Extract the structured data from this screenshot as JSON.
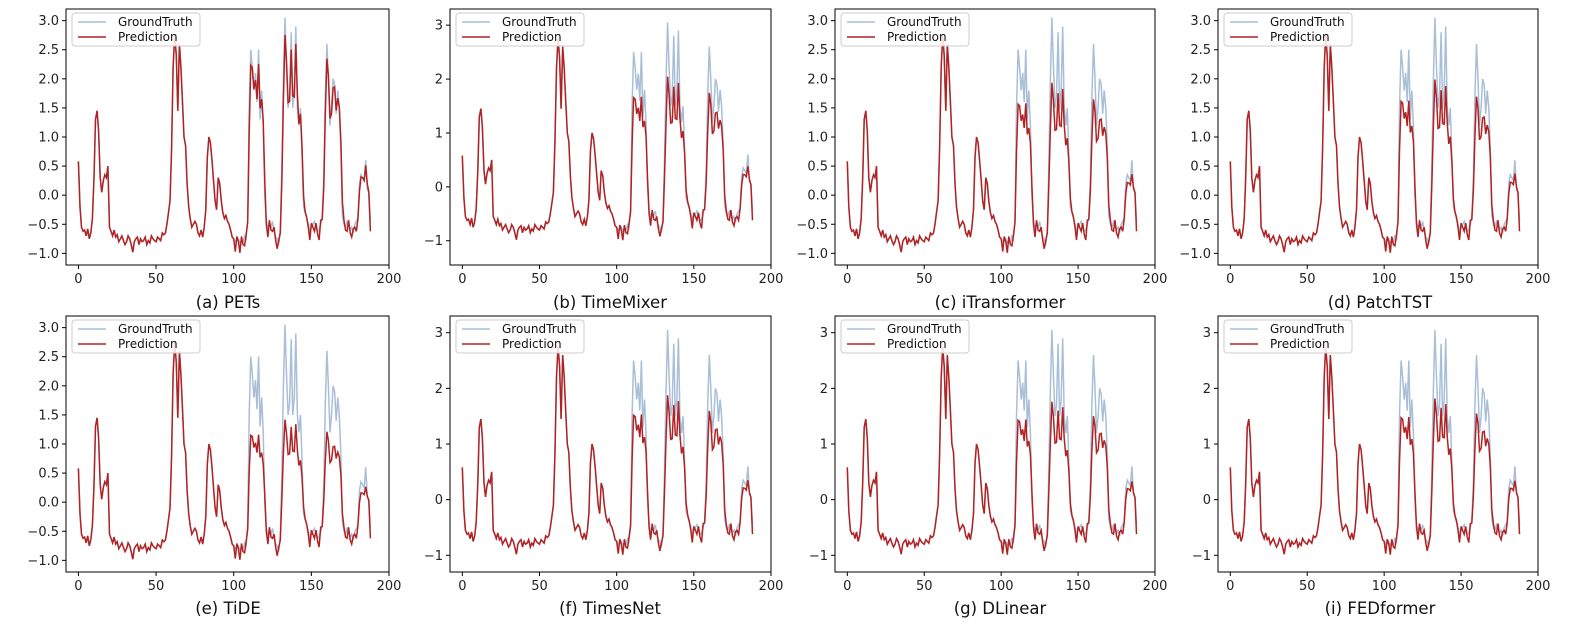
{
  "colors": {
    "ground_truth": "#a9bfd8",
    "prediction": "#b22222",
    "axis": "#000000"
  },
  "chart_data": [
    {
      "type": "line",
      "panel_id": "a",
      "caption": "(a) PETs",
      "model": "PETs",
      "series": [
        {
          "name": "GroundTruth"
        },
        {
          "name": "Prediction"
        }
      ],
      "xlim": [
        -8,
        200
      ],
      "ylim": [
        -1.2,
        3.2
      ],
      "x_ticks": [
        0,
        50,
        100,
        150,
        200
      ],
      "y_ticks": [
        -1.0,
        -0.5,
        0.0,
        0.5,
        1.0,
        1.5,
        2.0,
        2.5,
        3.0
      ],
      "y_tick_labels": [
        "−1.0",
        "−0.5",
        "0.0",
        "0.5",
        "1.0",
        "1.5",
        "2.0",
        "2.5",
        "3.0"
      ],
      "pred_scale": 0.97,
      "legend": "top-left"
    },
    {
      "type": "line",
      "panel_id": "b",
      "caption": "(b) TimeMixer",
      "model": "TimeMixer",
      "series": [
        {
          "name": "GroundTruth"
        },
        {
          "name": "Prediction"
        }
      ],
      "xlim": [
        -8,
        200
      ],
      "ylim": [
        -1.45,
        3.3
      ],
      "x_ticks": [
        0,
        50,
        100,
        150,
        200
      ],
      "y_ticks": [
        -1,
        0,
        1,
        2,
        3
      ],
      "y_tick_labels": [
        "−1",
        "0",
        "1",
        "2",
        "3"
      ],
      "pred_scale": 0.72,
      "legend": "top-left"
    },
    {
      "type": "line",
      "panel_id": "c",
      "caption": "(c) iTransformer",
      "model": "iTransformer",
      "series": [
        {
          "name": "GroundTruth"
        },
        {
          "name": "Prediction"
        }
      ],
      "xlim": [
        -8,
        200
      ],
      "ylim": [
        -1.2,
        3.2
      ],
      "x_ticks": [
        0,
        50,
        100,
        150,
        200
      ],
      "y_ticks": [
        -1.0,
        -0.5,
        0.0,
        0.5,
        1.0,
        1.5,
        2.0,
        2.5,
        3.0
      ],
      "y_tick_labels": [
        "−1.0",
        "−0.5",
        "0.0",
        "0.5",
        "1.0",
        "1.5",
        "2.0",
        "2.5",
        "3.0"
      ],
      "pred_scale": 0.68,
      "legend": "top-left"
    },
    {
      "type": "line",
      "panel_id": "d",
      "caption": "(d) PatchTST",
      "model": "PatchTST",
      "series": [
        {
          "name": "GroundTruth"
        },
        {
          "name": "Prediction"
        }
      ],
      "xlim": [
        -8,
        200
      ],
      "ylim": [
        -1.2,
        3.2
      ],
      "x_ticks": [
        0,
        50,
        100,
        150,
        200
      ],
      "y_ticks": [
        -1.0,
        -0.5,
        0.0,
        0.5,
        1.0,
        1.5,
        2.0,
        2.5,
        3.0
      ],
      "y_tick_labels": [
        "−1.0",
        "−0.5",
        "0.0",
        "0.5",
        "1.0",
        "1.5",
        "2.0",
        "2.5",
        "3.0"
      ],
      "pred_scale": 0.7,
      "legend": "top-left"
    },
    {
      "type": "line",
      "panel_id": "e",
      "caption": "(e) TiDE",
      "model": "TiDE",
      "series": [
        {
          "name": "GroundTruth"
        },
        {
          "name": "Prediction"
        }
      ],
      "xlim": [
        -8,
        200
      ],
      "ylim": [
        -1.2,
        3.2
      ],
      "x_ticks": [
        0,
        50,
        100,
        150,
        200
      ],
      "y_ticks": [
        -1.0,
        -0.5,
        0.0,
        0.5,
        1.0,
        1.5,
        2.0,
        2.5,
        3.0
      ],
      "y_tick_labels": [
        "−1.0",
        "−0.5",
        "0.0",
        "0.5",
        "1.0",
        "1.5",
        "2.0",
        "2.5",
        "3.0"
      ],
      "pred_scale": 0.5,
      "legend": "top-left"
    },
    {
      "type": "line",
      "panel_id": "f",
      "caption": "(f) TimesNet",
      "model": "TimesNet",
      "series": [
        {
          "name": "GroundTruth"
        },
        {
          "name": "Prediction"
        }
      ],
      "xlim": [
        -8,
        200
      ],
      "ylim": [
        -1.3,
        3.3
      ],
      "x_ticks": [
        0,
        50,
        100,
        150,
        200
      ],
      "y_ticks": [
        -1,
        0,
        1,
        2,
        3
      ],
      "y_tick_labels": [
        "−1",
        "0",
        "1",
        "2",
        "3"
      ],
      "pred_scale": 0.66,
      "legend": "top-left"
    },
    {
      "type": "line",
      "panel_id": "g",
      "caption": "(g) DLinear",
      "model": "DLinear",
      "series": [
        {
          "name": "GroundTruth"
        },
        {
          "name": "Prediction"
        }
      ],
      "xlim": [
        -8,
        200
      ],
      "ylim": [
        -1.3,
        3.3
      ],
      "x_ticks": [
        0,
        50,
        100,
        150,
        200
      ],
      "y_ticks": [
        -1,
        0,
        1,
        2,
        3
      ],
      "y_tick_labels": [
        "−1",
        "0",
        "1",
        "2",
        "3"
      ],
      "pred_scale": 0.62,
      "legend": "top-left"
    },
    {
      "type": "line",
      "panel_id": "i",
      "caption": "(i) FEDformer",
      "model": "FEDformer",
      "series": [
        {
          "name": "GroundTruth"
        },
        {
          "name": "Prediction"
        }
      ],
      "xlim": [
        -8,
        200
      ],
      "ylim": [
        -1.3,
        3.3
      ],
      "x_ticks": [
        0,
        50,
        100,
        150,
        200
      ],
      "y_ticks": [
        -1,
        0,
        1,
        2,
        3
      ],
      "y_tick_labels": [
        "−1",
        "0",
        "1",
        "2",
        "3"
      ],
      "pred_scale": 0.64,
      "legend": "top-left"
    }
  ],
  "ground_truth_values": [
    0.58,
    -0.2,
    -0.55,
    -0.62,
    -0.6,
    -0.7,
    -0.58,
    -0.75,
    -0.65,
    -0.4,
    0.3,
    1.3,
    1.45,
    1.1,
    0.3,
    0.05,
    0.25,
    0.35,
    0.3,
    0.5,
    -0.55,
    -0.62,
    -0.7,
    -0.6,
    -0.72,
    -0.68,
    -0.8,
    -0.75,
    -0.7,
    -0.78,
    -0.85,
    -0.8,
    -0.7,
    -0.75,
    -0.85,
    -0.98,
    -0.8,
    -0.75,
    -0.72,
    -0.85,
    -0.75,
    -0.8,
    -0.78,
    -0.72,
    -0.85,
    -0.78,
    -0.82,
    -0.7,
    -0.75,
    -0.78,
    -0.8,
    -0.72,
    -0.75,
    -0.78,
    -0.65,
    -0.68,
    -0.65,
    -0.5,
    -0.3,
    -0.1,
    0.8,
    2.2,
    2.75,
    2.4,
    1.45,
    2.6,
    2.2,
    1.6,
    1.0,
    0.85,
    0.2,
    -0.2,
    -0.4,
    -0.55,
    -0.5,
    -0.45,
    -0.5,
    -0.65,
    -0.7,
    -0.6,
    -0.72,
    -0.55,
    -0.25,
    0.65,
    1.0,
    0.9,
    0.6,
    0.25,
    -0.1,
    -0.25,
    0.3,
    0.2,
    -0.1,
    -0.3,
    -0.4,
    -0.35,
    -0.45,
    -0.5,
    -0.6,
    -0.72,
    -0.75,
    -0.8,
    -0.78,
    -0.75,
    -0.82,
    -0.78,
    -0.8,
    -0.7,
    -0.75,
    -0.4,
    1.5,
    2.5,
    2.2,
    1.8,
    2.1,
    1.6,
    2.5,
    1.3,
    1.8,
    1.2,
    0.0,
    -0.45,
    -0.55,
    -0.5,
    -0.55,
    -0.45,
    -0.62,
    -0.72,
    -0.75,
    -0.85,
    -0.6,
    0.5,
    2.0,
    3.05,
    2.2,
    1.5,
    1.7,
    2.8,
    1.5,
    1.8,
    2.9,
    1.5,
    1.2,
    1.5,
    0.7,
    -0.2,
    -0.3,
    -0.4,
    -0.5,
    -0.6,
    -0.55,
    -0.5,
    -0.45,
    -0.55,
    -0.62,
    -0.6,
    -0.5,
    -0.4,
    0.3,
    1.7,
    2.6,
    2.0,
    1.2,
    1.5,
    2.0,
    1.9,
    1.4,
    1.8,
    1.5,
    0.8,
    -0.35,
    -0.5,
    -0.55,
    -0.45,
    -0.5,
    -0.6,
    -0.55,
    -0.65,
    -0.5,
    -0.45,
    -0.4,
    0.2,
    0.35,
    0.3,
    0.25,
    0.6,
    0.1,
    0.05,
    -0.45
  ],
  "captions": {
    "a": "(a) PETs",
    "b": "(b) TimeMixer",
    "c": "(c) iTransformer",
    "d": "(d) PatchTST",
    "e": "(e) TiDE",
    "f": "(f) TimesNet",
    "g": "(g) DLinear",
    "i": "(i) FEDformer"
  }
}
